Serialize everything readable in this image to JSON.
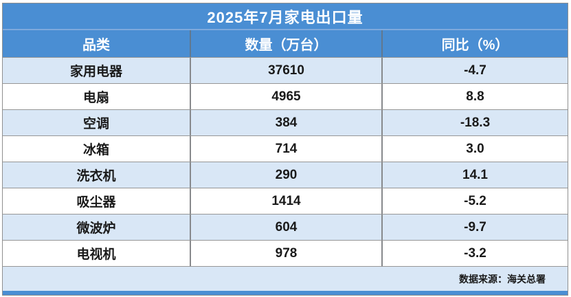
{
  "title": "2025年7月家电出口量",
  "table": {
    "headers": {
      "category": "品类",
      "quantity": "数量（万台）",
      "yoy": "同比（%）"
    },
    "rows": [
      {
        "category": "家用电器",
        "quantity": "37610",
        "yoy": "-4.7"
      },
      {
        "category": "电扇",
        "quantity": "4965",
        "yoy": "8.8"
      },
      {
        "category": "空调",
        "quantity": "384",
        "yoy": "-18.3"
      },
      {
        "category": "冰箱",
        "quantity": "714",
        "yoy": "3.0"
      },
      {
        "category": "洗衣机",
        "quantity": "290",
        "yoy": "14.1"
      },
      {
        "category": "吸尘器",
        "quantity": "1414",
        "yoy": "-5.2"
      },
      {
        "category": "微波炉",
        "quantity": "604",
        "yoy": "-9.7"
      },
      {
        "category": "电视机",
        "quantity": "978",
        "yoy": "-3.2"
      }
    ]
  },
  "footer": {
    "source_note": "数据来源：海关总署"
  },
  "colors": {
    "header_blue": "#4a8ed3",
    "light_row_blue": "#d9e7f6",
    "white_row": "#ffffff",
    "border_gray": "#969696",
    "title_text": "#ffffff",
    "body_text": "#1a1a1a"
  },
  "chart_data": {
    "type": "table",
    "title": "2025年7月家电出口量",
    "columns": [
      "品类",
      "数量（万台）",
      "同比（%）"
    ],
    "rows": [
      [
        "家用电器",
        37610,
        -4.7
      ],
      [
        "电扇",
        4965,
        8.8
      ],
      [
        "空调",
        384,
        -18.3
      ],
      [
        "冰箱",
        714,
        3.0
      ],
      [
        "洗衣机",
        290,
        14.1
      ],
      [
        "吸尘器",
        1414,
        -5.2
      ],
      [
        "微波炉",
        604,
        -9.7
      ],
      [
        "电视机",
        978,
        -3.2
      ]
    ],
    "source_note": "数据来源：海关总署"
  }
}
